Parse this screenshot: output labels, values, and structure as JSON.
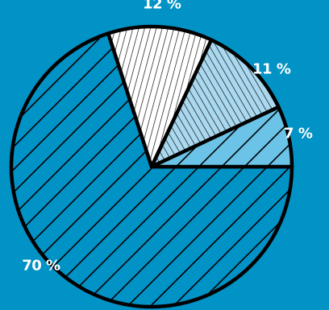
{
  "chart_data": {
    "type": "pie",
    "categories": [
      "",
      "",
      "",
      ""
    ],
    "values": [
      70,
      12,
      11,
      7
    ],
    "labels": [
      "70 %",
      "12 %",
      "11 %",
      "7 %"
    ],
    "colors": [
      "#0192c6",
      "#ffffff",
      "#a9d8ef",
      "#6cc3e8"
    ],
    "hatch": [
      "diagonal-wide",
      "vertical-dense",
      "diagonal-dense",
      "diagonal-wide"
    ],
    "start_angle_deg": 0,
    "direction": "clockwise",
    "title": "",
    "legend": "none"
  },
  "theme": {
    "background": "#0192c6",
    "outline": "#000000",
    "label_color": "#ffffff"
  }
}
